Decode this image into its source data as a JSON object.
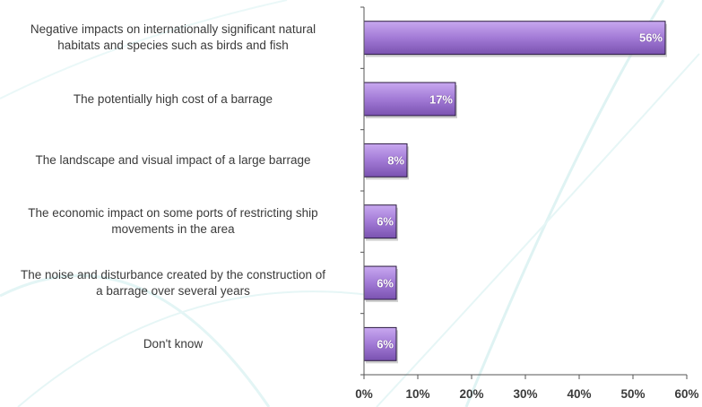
{
  "chart_data": {
    "type": "bar",
    "orientation": "horizontal",
    "categories": [
      [
        "Negative impacts on internationally significant natural",
        "habitats and species such as birds and fish"
      ],
      [
        "The potentially high cost of a barrage"
      ],
      [
        "The landscape and visual impact of a large barrage"
      ],
      [
        "The economic impact on some ports of restricting ship",
        "movements in the area"
      ],
      [
        "The noise and disturbance created by the construction of",
        "a barrage over several years"
      ],
      [
        "Don't know"
      ]
    ],
    "values": [
      56,
      17,
      8,
      6,
      6,
      6
    ],
    "data_labels": [
      "56%",
      "17%",
      "8%",
      "6%",
      "6%",
      "6%"
    ],
    "xlim": [
      0,
      60
    ],
    "xticks": [
      0,
      10,
      20,
      30,
      40,
      50,
      60
    ],
    "xtick_labels": [
      "0%",
      "10%",
      "20%",
      "30%",
      "40%",
      "50%",
      "60%"
    ],
    "title": "",
    "xlabel": "",
    "ylabel": "",
    "grid": false,
    "colors": {
      "bar_top": "#c8a8f0",
      "bar_bottom": "#8a60c0",
      "bar_edge": "#2a1a40",
      "axis": "#555555",
      "background_swirl": "#d8f2f2"
    }
  }
}
